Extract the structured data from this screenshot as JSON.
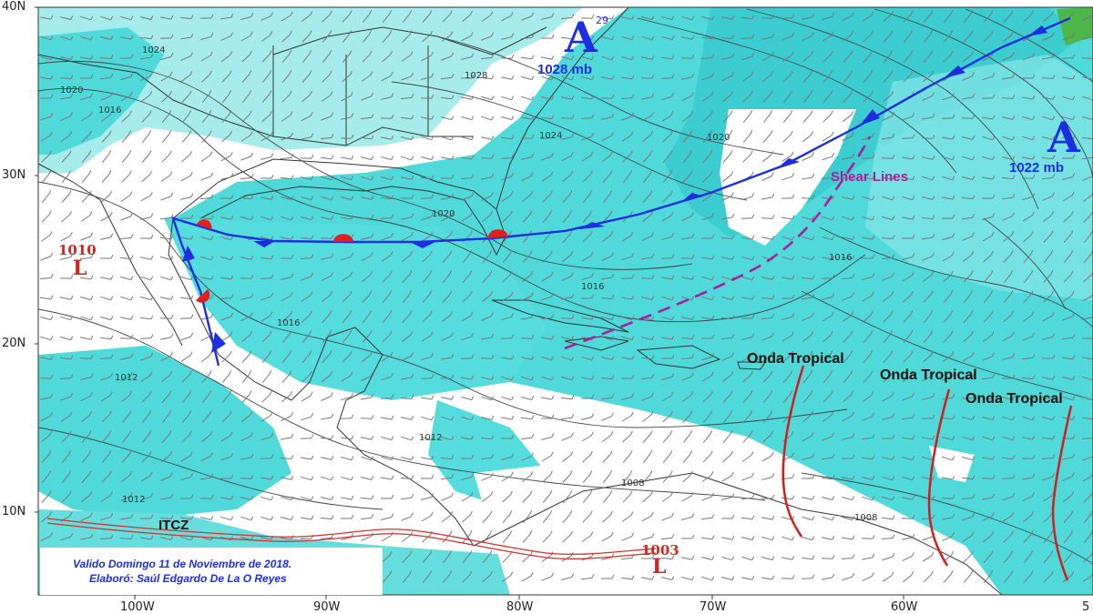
{
  "map": {
    "lat_ticks": [
      "40N",
      "30N",
      "20N",
      "10N"
    ],
    "lon_ticks": [
      "100W",
      "90W",
      "80W",
      "70W",
      "60W",
      "5"
    ],
    "isobar_labels": [
      "1024",
      "1020",
      "1016",
      "1028",
      "1024",
      "1020",
      "1020",
      "1016",
      "1016",
      "1016",
      "1012",
      "1012",
      "1012",
      "1008",
      "1008"
    ],
    "highs": [
      {
        "letter": "A",
        "pressure": "1028 mb",
        "sup": "29"
      },
      {
        "letter": "A",
        "pressure": "1022 mb"
      }
    ],
    "lows": [
      {
        "value": "1010",
        "letter": "L"
      },
      {
        "value": "1003",
        "letter": "L"
      }
    ],
    "tropical_waves": [
      "Onda Tropical",
      "Onda Tropical",
      "Onda Tropical"
    ],
    "shear_label": "Shear Lines",
    "itcz_label": "ITCZ",
    "valid_text": "Valido  Domingo 11 de Noviembre de 2018.",
    "author_text": "Elaboró: Saúl Edgardo De La O Reyes",
    "colors": {
      "moisture": "#4fd9d9",
      "moisture_light": "#a6ecec",
      "front_blue": "#1c2ee0",
      "front_red": "#e21f1f",
      "wave_red": "#d31d1d",
      "shear": "#a81f9b",
      "itcz": "#d33030"
    }
  }
}
